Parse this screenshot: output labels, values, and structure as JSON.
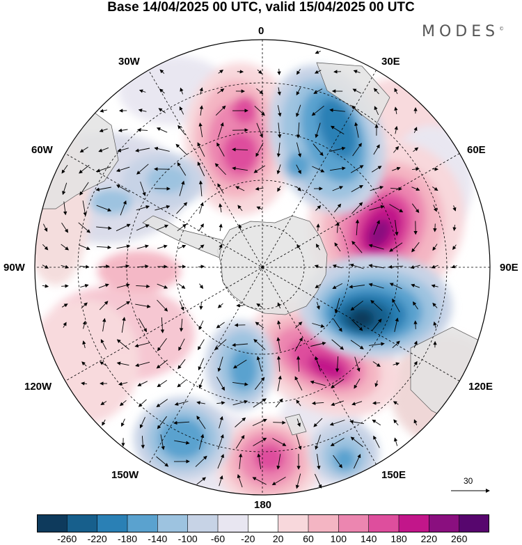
{
  "title": "Base 14/04/2025 00 UTC, valid 15/04/2025 00 UTC",
  "brand": {
    "name": "MODES",
    "mark": "©"
  },
  "longitude_labels": {
    "lon_0": "0",
    "lon_30e": "30E",
    "lon_60e": "60E",
    "lon_90e": "90E",
    "lon_120e": "120E",
    "lon_150e": "150E",
    "lon_180": "180",
    "lon_150w": "150W",
    "lon_120w": "120W",
    "lon_90w": "90W",
    "lon_60w": "60W",
    "lon_30w": "30W"
  },
  "reference_vector": {
    "value": "30"
  },
  "colorbar": {
    "colors": [
      "#0e3a5c",
      "#175f8c",
      "#2a80b5",
      "#5aa2cf",
      "#9dc3e0",
      "#c7d3e6",
      "#e8e6f1",
      "#ffffff",
      "#f8d8dc",
      "#f4b5c3",
      "#ec86b0",
      "#de4e9d",
      "#c2168a",
      "#8a0f7f",
      "#57066e"
    ],
    "tick_labels": [
      "-260",
      "-220",
      "-180",
      "-140",
      "-100",
      "-60",
      "-20",
      "20",
      "60",
      "100",
      "140",
      "180",
      "220",
      "260"
    ]
  },
  "colors": {
    "land": "#e3e3e3",
    "ocean": "#ffffff",
    "grid": "#000000"
  }
}
